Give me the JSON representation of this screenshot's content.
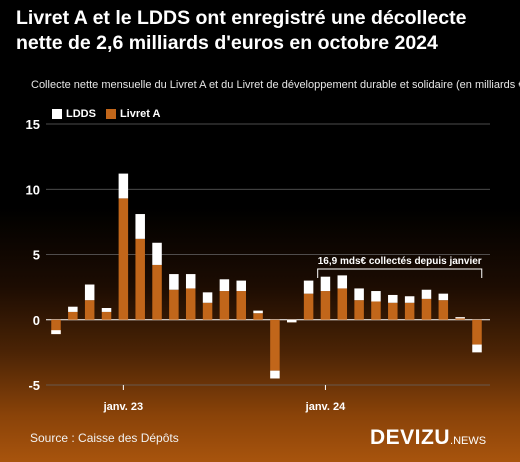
{
  "title": "Livret A et le LDDS ont enregistré une décollecte nette de 2,6 milliards d'euros en octobre 2024",
  "subtitle": "Collecte nette mensuelle du Livret A et du Livret de développement durable et solidaire (en milliards €)",
  "source": "Source : Caisse des Dépôts",
  "brand": {
    "name": "DEVIZU",
    "suffix": ".NEWS"
  },
  "colors": {
    "ldds": "#ffffff",
    "livret_a": "#c1661a",
    "grid": "#666666",
    "axis": "#ffffff"
  },
  "chart_data": {
    "type": "bar",
    "stacked": true,
    "x": [
      "2022-09",
      "2022-10",
      "2022-11",
      "2022-12",
      "2023-01",
      "2023-02",
      "2023-03",
      "2023-04",
      "2023-05",
      "2023-06",
      "2023-07",
      "2023-08",
      "2023-09",
      "2023-10",
      "2023-11",
      "2023-12",
      "2024-01",
      "2024-02",
      "2024-03",
      "2024-04",
      "2024-05",
      "2024-06",
      "2024-07",
      "2024-08",
      "2024-09",
      "2024-10"
    ],
    "series": [
      {
        "name": "Livret A",
        "values": [
          -1.1,
          0.6,
          1.5,
          0.6,
          9.3,
          6.2,
          4.2,
          2.3,
          2.4,
          1.3,
          2.2,
          2.2,
          0.5,
          -3.9,
          -0.2,
          2.0,
          2.2,
          2.4,
          1.5,
          1.4,
          1.3,
          1.3,
          1.6,
          1.5,
          0.1,
          -1.9
        ]
      },
      {
        "name": "LDDS",
        "values": [
          0.3,
          0.4,
          1.2,
          0.3,
          1.9,
          1.9,
          1.7,
          1.2,
          1.1,
          0.8,
          0.9,
          0.8,
          0.2,
          -0.6,
          0.2,
          1.0,
          1.1,
          1.0,
          0.9,
          0.8,
          0.6,
          0.5,
          0.7,
          0.5,
          0.1,
          -0.6
        ]
      }
    ],
    "ylim": [
      -5,
      15
    ],
    "yticks": [
      -5,
      0,
      5,
      10,
      15
    ],
    "xtick_labels": [
      {
        "index": 4,
        "label": "janv. 23"
      },
      {
        "index": 16,
        "label": "janv. 24"
      }
    ],
    "annotation": {
      "text": "16,9 mds€ collectés depuis janvier",
      "start_index": 16,
      "end_index": 25
    },
    "legend": {
      "position": "top-left"
    },
    "grid": true
  }
}
